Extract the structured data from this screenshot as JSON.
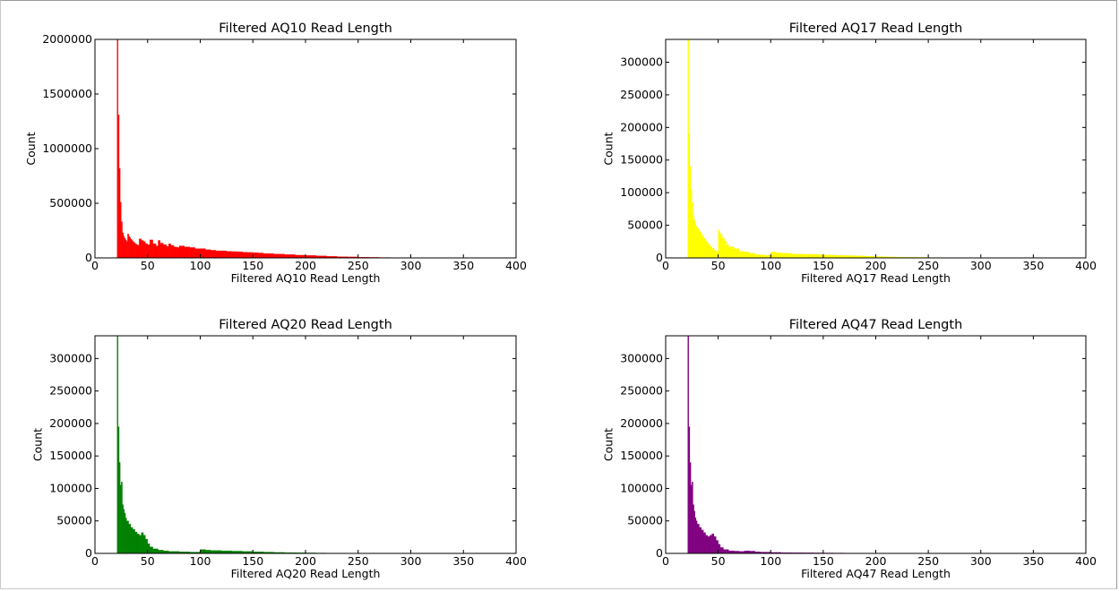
{
  "chart_data": [
    {
      "type": "bar",
      "title": "Filtered AQ10 Read Length",
      "xlabel": "Filtered AQ10 Read Length",
      "ylabel": "Count",
      "xlim": [
        0,
        400
      ],
      "ylim": [
        0,
        2000000
      ],
      "xticks": [
        "0",
        "50",
        "100",
        "150",
        "200",
        "250",
        "300",
        "350",
        "400"
      ],
      "yticks": [
        "0",
        "500000",
        "1000000",
        "1500000",
        "2000000"
      ],
      "color": "#ff0000",
      "x": [
        21,
        22,
        23,
        24,
        25,
        26,
        27,
        28,
        29,
        30,
        31,
        32,
        33,
        34,
        35,
        36,
        37,
        38,
        39,
        40,
        42,
        44,
        46,
        48,
        50,
        52,
        55,
        58,
        60,
        62,
        65,
        68,
        70,
        72,
        75,
        78,
        80,
        85,
        90,
        95,
        100,
        105,
        110,
        115,
        120,
        125,
        130,
        135,
        140,
        145,
        150,
        155,
        160,
        170,
        180,
        190,
        200,
        210,
        220,
        230,
        240,
        250,
        260,
        270,
        280,
        290,
        300
      ],
      "values": [
        2000000,
        1310000,
        820000,
        510000,
        330000,
        230000,
        200000,
        180000,
        165000,
        150000,
        220000,
        200000,
        185000,
        170000,
        160000,
        150000,
        140000,
        130000,
        125000,
        118000,
        175000,
        160000,
        150000,
        130000,
        120000,
        165000,
        130000,
        110000,
        160000,
        135000,
        120000,
        105000,
        130000,
        115000,
        100000,
        95000,
        110000,
        100000,
        95000,
        85000,
        85000,
        75000,
        70000,
        65000,
        65000,
        60000,
        58000,
        55000,
        52000,
        50000,
        48000,
        45000,
        40000,
        35000,
        30000,
        25000,
        22000,
        18000,
        14000,
        11000,
        9000,
        7000,
        5000,
        3500,
        2500,
        1500,
        1000
      ]
    },
    {
      "type": "bar",
      "title": "Filtered AQ17 Read Length",
      "xlabel": "Filtered AQ17 Read Length",
      "ylabel": "Count",
      "xlim": [
        0,
        400
      ],
      "ylim": [
        0,
        335000
      ],
      "xticks": [
        "0",
        "50",
        "100",
        "150",
        "200",
        "250",
        "300",
        "350",
        "400"
      ],
      "yticks": [
        "0",
        "50000",
        "100000",
        "150000",
        "200000",
        "250000",
        "300000"
      ],
      "color": "#ffff00",
      "x": [
        21,
        22,
        23,
        24,
        25,
        26,
        27,
        28,
        29,
        30,
        32,
        34,
        36,
        38,
        40,
        42,
        44,
        46,
        48,
        50,
        51,
        52,
        54,
        56,
        58,
        60,
        65,
        70,
        75,
        80,
        85,
        90,
        95,
        100,
        105,
        110,
        120,
        130,
        140,
        150,
        160,
        170,
        180,
        190,
        200,
        210,
        220,
        230,
        240,
        250,
        260
      ],
      "values": [
        335000,
        190000,
        140000,
        105000,
        85000,
        65000,
        58000,
        52000,
        48000,
        45000,
        40000,
        35000,
        30000,
        26000,
        22000,
        18000,
        15000,
        12000,
        10000,
        43000,
        40000,
        36000,
        30000,
        25000,
        20000,
        17000,
        14000,
        10000,
        9000,
        7000,
        5000,
        4500,
        4000,
        9000,
        8000,
        7000,
        6000,
        5500,
        5000,
        4500,
        4000,
        3500,
        3000,
        2500,
        2000,
        1500,
        1200,
        1000,
        800,
        600,
        400
      ]
    },
    {
      "type": "bar",
      "title": "Filtered AQ20 Read Length",
      "xlabel": "Filtered AQ20 Read Length",
      "ylabel": "Count",
      "xlim": [
        0,
        400
      ],
      "ylim": [
        0,
        335000
      ],
      "xticks": [
        "0",
        "50",
        "100",
        "150",
        "200",
        "250",
        "300",
        "350",
        "400"
      ],
      "yticks": [
        "0",
        "50000",
        "100000",
        "150000",
        "200000",
        "250000",
        "300000"
      ],
      "color": "#008000",
      "x": [
        21,
        22,
        23,
        24,
        25,
        26,
        27,
        28,
        29,
        30,
        32,
        34,
        36,
        38,
        40,
        42,
        44,
        46,
        48,
        50,
        52,
        55,
        60,
        65,
        70,
        80,
        90,
        100,
        105,
        110,
        120,
        130,
        140,
        150,
        160,
        170,
        180,
        190,
        200,
        210,
        220,
        230
      ],
      "values": [
        335000,
        195000,
        140000,
        105000,
        110000,
        75000,
        68000,
        62000,
        55000,
        50000,
        45000,
        40000,
        37000,
        33000,
        30000,
        28000,
        32000,
        28000,
        22000,
        15000,
        10000,
        7000,
        5000,
        4000,
        3000,
        2500,
        2000,
        6000,
        5000,
        4500,
        4000,
        3500,
        3000,
        2500,
        2000,
        1500,
        1200,
        1000,
        800,
        600,
        400,
        300
      ]
    },
    {
      "type": "bar",
      "title": "Filtered AQ47 Read Length",
      "xlabel": "Filtered AQ47 Read Length",
      "ylabel": "Count",
      "xlim": [
        0,
        400
      ],
      "ylim": [
        0,
        335000
      ],
      "xticks": [
        "0",
        "50",
        "100",
        "150",
        "200",
        "250",
        "300",
        "350",
        "400"
      ],
      "yticks": [
        "0",
        "50000",
        "100000",
        "150000",
        "200000",
        "250000",
        "300000"
      ],
      "color": "#800080",
      "x": [
        21,
        22,
        23,
        24,
        25,
        26,
        27,
        28,
        29,
        30,
        32,
        34,
        36,
        38,
        40,
        42,
        44,
        46,
        48,
        50,
        52,
        55,
        60,
        65,
        70,
        75,
        80,
        85,
        90,
        100,
        110,
        120,
        130,
        140,
        150,
        160,
        170
      ],
      "values": [
        335000,
        195000,
        140000,
        105000,
        110000,
        75000,
        65000,
        55000,
        50000,
        45000,
        40000,
        36000,
        32000,
        28000,
        26000,
        28000,
        30000,
        26000,
        20000,
        14000,
        9000,
        6000,
        4000,
        3500,
        3000,
        4000,
        3500,
        2500,
        2000,
        1500,
        1200,
        1000,
        900,
        800,
        700,
        600,
        500
      ]
    }
  ]
}
